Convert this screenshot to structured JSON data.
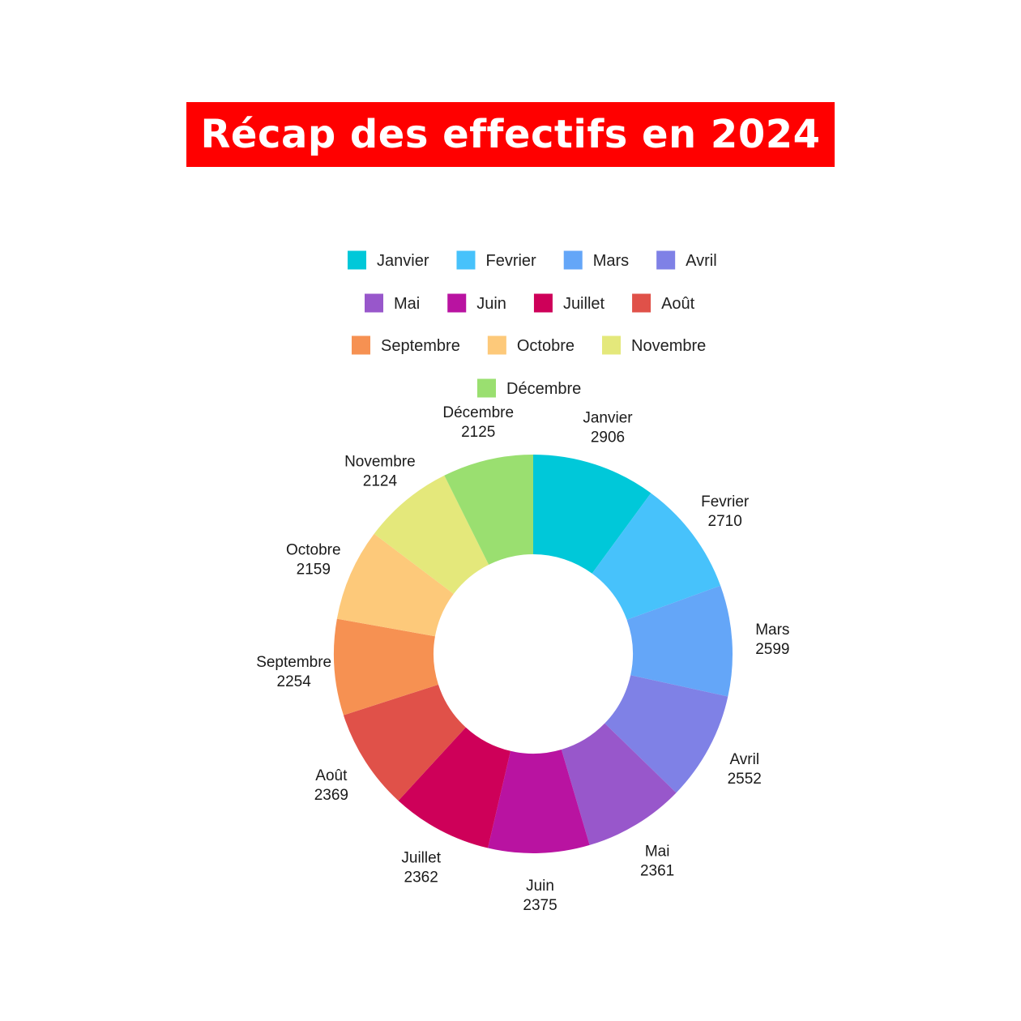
{
  "title": "Récap des effectifs en 2024",
  "colors": {
    "banner": "#ff0000",
    "banner_text": "#ffffff"
  },
  "chart_data": {
    "type": "pie",
    "donut": true,
    "categories": [
      "Janvier",
      "Fevrier",
      "Mars",
      "Avril",
      "Mai",
      "Juin",
      "Juillet",
      "Août",
      "Septembre",
      "Octobre",
      "Novembre",
      "Décembre"
    ],
    "values": [
      2906,
      2710,
      2599,
      2552,
      2361,
      2375,
      2362,
      2369,
      2254,
      2159,
      2124,
      2125
    ],
    "colors": [
      "#00c8d9",
      "#47c2fb",
      "#64a6f8",
      "#7f81e6",
      "#9857cb",
      "#b913a1",
      "#ce0059",
      "#e05149",
      "#f69152",
      "#fdc97a",
      "#e4e87b",
      "#9adf70"
    ],
    "legend_position": "top",
    "labels_show_value": true
  }
}
